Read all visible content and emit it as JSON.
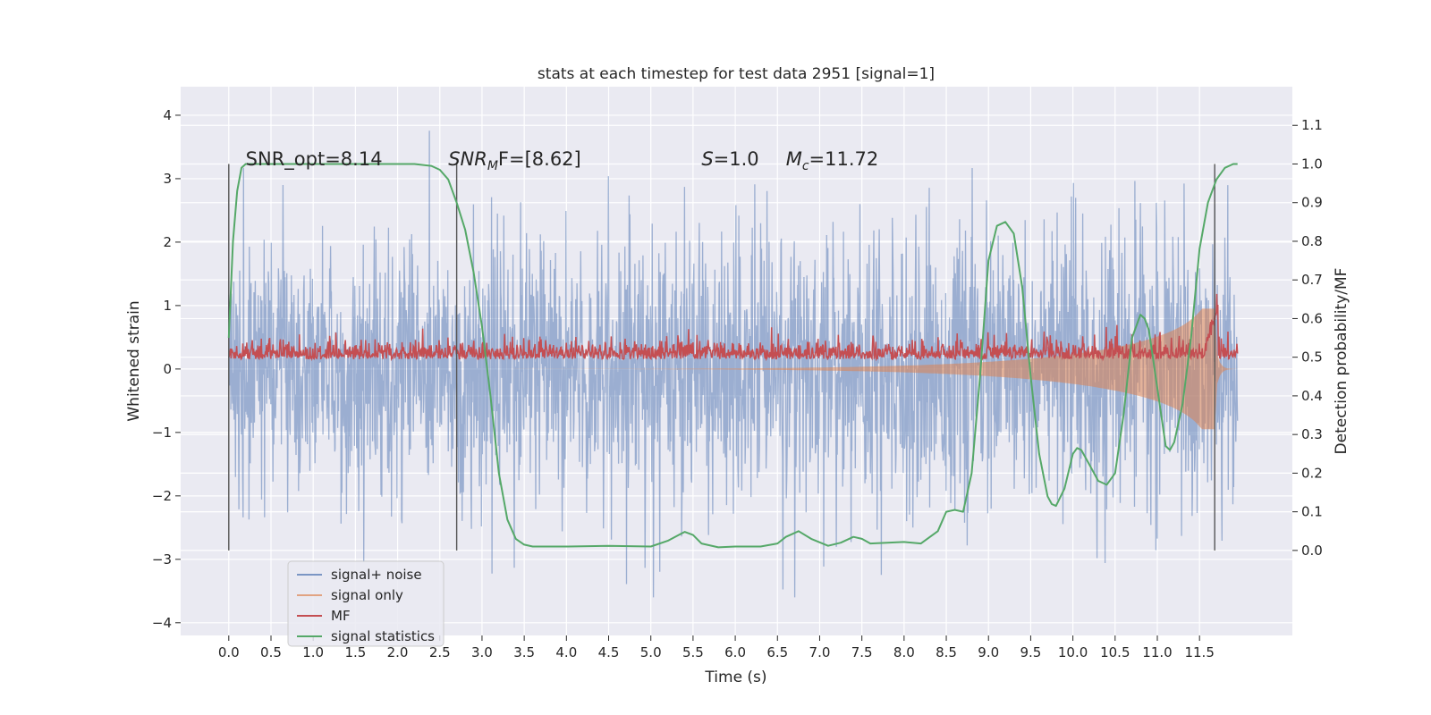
{
  "chart_data": {
    "type": "line",
    "title": "stats at each timestep for test data 2951 [signal=1]",
    "xlabel": "Time (s)",
    "ylabel_left": "Whitened strain",
    "ylabel_right": "Detection probability/MF",
    "xlim": [
      -0.57,
      12.6
    ],
    "ylim_left": [
      -4.2,
      4.45
    ],
    "ylim_right": [
      -0.22,
      1.2
    ],
    "x_ticks": [
      "0.0",
      "0.5",
      "1.0",
      "1.5",
      "2.0",
      "2.5",
      "3.0",
      "3.5",
      "4.0",
      "4.5",
      "5.0",
      "5.5",
      "6.0",
      "6.5",
      "7.0",
      "7.5",
      "8.0",
      "8.5",
      "9.0",
      "9.5",
      "10.0",
      "10.5",
      "11.0",
      "11.5"
    ],
    "y_ticks_left": [
      "4",
      "3",
      "2",
      "1",
      "0",
      "−1",
      "−2",
      "−3",
      "−4"
    ],
    "y_ticks_right": [
      "1.1",
      "1.0",
      "0.9",
      "0.8",
      "0.7",
      "0.6",
      "0.5",
      "0.4",
      "0.3",
      "0.2",
      "0.1",
      "0.0"
    ],
    "grid": true,
    "legend_position": "lower-left",
    "colors": {
      "signal_noise": "#4c72b0",
      "signal_only": "#dd8452",
      "mf": "#c44e52",
      "signal_statistics": "#55a868",
      "plot_background": "#eaeaf2"
    },
    "series": [
      {
        "name": "signal+ noise",
        "axis": "left",
        "description_range": [
          -3.6,
          4.1
        ],
        "x_range": [
          0.0,
          11.95
        ]
      },
      {
        "name": "signal only",
        "axis": "left",
        "x_range": [
          0.0,
          11.95
        ]
      },
      {
        "name": "MF",
        "axis": "right",
        "x_range": [
          0.0,
          11.95
        ]
      },
      {
        "name": "signal statistics",
        "axis": "right",
        "x": [
          0.0,
          0.05,
          0.1,
          0.15,
          0.2,
          0.3,
          0.5,
          1.0,
          1.5,
          2.0,
          2.2,
          2.4,
          2.5,
          2.6,
          2.7,
          2.8,
          2.9,
          3.0,
          3.1,
          3.2,
          3.3,
          3.4,
          3.5,
          3.6,
          3.7,
          3.8,
          4.0,
          4.5,
          5.0,
          5.2,
          5.4,
          5.5,
          5.6,
          5.8,
          6.0,
          6.3,
          6.5,
          6.6,
          6.75,
          6.9,
          7.1,
          7.25,
          7.4,
          7.5,
          7.6,
          7.8,
          8.0,
          8.2,
          8.4,
          8.5,
          8.6,
          8.7,
          8.8,
          8.9,
          9.0,
          9.1,
          9.2,
          9.3,
          9.4,
          9.5,
          9.6,
          9.7,
          9.75,
          9.8,
          9.9,
          10.0,
          10.05,
          10.1,
          10.2,
          10.3,
          10.4,
          10.5,
          10.6,
          10.7,
          10.8,
          10.85,
          10.9,
          11.0,
          11.1,
          11.15,
          11.2,
          11.3,
          11.4,
          11.5,
          11.6,
          11.7,
          11.8,
          11.9,
          11.95
        ],
        "y": [
          0.55,
          0.8,
          0.93,
          0.99,
          1.0,
          1.0,
          1.0,
          1.0,
          1.0,
          1.0,
          1.0,
          0.995,
          0.985,
          0.96,
          0.9,
          0.83,
          0.72,
          0.58,
          0.4,
          0.2,
          0.08,
          0.03,
          0.015,
          0.01,
          0.01,
          0.01,
          0.01,
          0.012,
          0.01,
          0.025,
          0.048,
          0.04,
          0.018,
          0.008,
          0.01,
          0.01,
          0.018,
          0.035,
          0.05,
          0.03,
          0.012,
          0.02,
          0.035,
          0.03,
          0.018,
          0.02,
          0.022,
          0.018,
          0.05,
          0.1,
          0.105,
          0.1,
          0.2,
          0.45,
          0.75,
          0.84,
          0.85,
          0.82,
          0.68,
          0.45,
          0.25,
          0.14,
          0.12,
          0.115,
          0.16,
          0.25,
          0.265,
          0.26,
          0.22,
          0.18,
          0.17,
          0.2,
          0.35,
          0.55,
          0.61,
          0.6,
          0.57,
          0.42,
          0.27,
          0.26,
          0.28,
          0.38,
          0.55,
          0.78,
          0.9,
          0.96,
          0.99,
          1.0,
          1.0
        ]
      }
    ],
    "vertical_markers": [
      0.0,
      2.7,
      11.68
    ],
    "annotations": [
      {
        "text": "SNR_opt=8.14",
        "x": 0.2
      },
      {
        "base": "SNR",
        "sub": "M",
        "rest": "F=[8.62]",
        "x": 2.6
      },
      {
        "base": "S",
        "rest": "=1.0",
        "x": 5.6
      },
      {
        "base": "M",
        "sub": "c",
        "rest": "=11.72",
        "x": 6.6
      }
    ]
  }
}
